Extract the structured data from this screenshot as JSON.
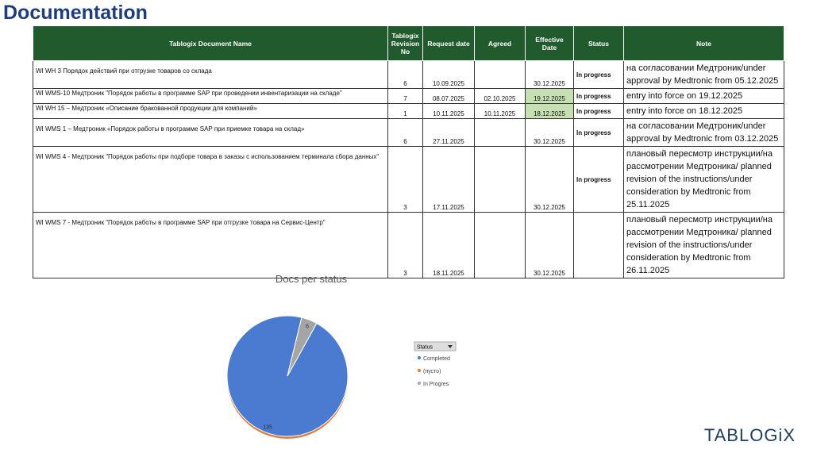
{
  "header": {
    "title": "Documentation"
  },
  "table": {
    "columns": [
      "Tablogix Document Name",
      "Tablogix Revision No",
      "Request date",
      "Agreed",
      "Effective Date",
      "Status",
      "Note"
    ],
    "rows": [
      [
        "WI WH 3 Порядок действий при отгрузке товаров со склада",
        6,
        "10.09.2025",
        null,
        "30.12.2025",
        "In progress",
        "на согласовании Медтроник/under approval by Medtronic  from 05.12.2025"
      ],
      [
        "WI WMS-10 Медтроник \"Порядок работы в программе SAP при проведении инвентаризации на складе\"",
        7,
        "08.07.2025",
        "02.10.2025",
        "19.12.2025",
        "In progress",
        "entry into force on 19.12.2025"
      ],
      [
        "WI WH 15 – Медтроник «Описание бракованной продукции для компаний»",
        1,
        "10.11.2025",
        "10.11.2025",
        "18.12.2025",
        "In progress",
        "entry into force on 18.12.2025"
      ],
      [
        "WI WMS 1 – Медтроник «Порядок работы в программе SAP при приемке товара на склад»",
        6,
        "27.11.2025",
        null,
        "30.12.2025",
        "In progress",
        "на согласовании Медтроник/under approval by Medtronic from  03.12.2025"
      ],
      [
        "WI WMS 4 - Медтроник \"Порядок работы при подборе товара в заказы с использованием терминала сбора данных\"",
        3,
        "17.11.2025",
        null,
        "30.12.2025",
        "In progress",
        "плановый пересмотр инструкции/на рассмотрении Медтроника/ planned revision of the instructions/under consideration by Medtronic from 25.11.2025"
      ],
      [
        "WI WMS 7 - Медтроник \"Порядок работы в программе SAP при отгрузке товара на Сервис-Центр\"",
        3,
        "18.11.2025",
        null,
        "30.12.2025",
        null,
        "плановый пересмотр инструкции/на рассмотрении Медтроника/ planned revision of the instructions/under consideration by Medtronic from 26.11.2025"
      ]
    ]
  },
  "chart_data": {
    "type": "pie",
    "title": "Docs per status",
    "legend_title": "Status",
    "categories": [
      "Completed",
      "(пусто)",
      "In Progres"
    ],
    "values": [
      135,
      0,
      6
    ],
    "colors": [
      "#4a7bd0",
      "#ed7d31",
      "#a5a5a5"
    ]
  },
  "logo": "TABLOGiX"
}
